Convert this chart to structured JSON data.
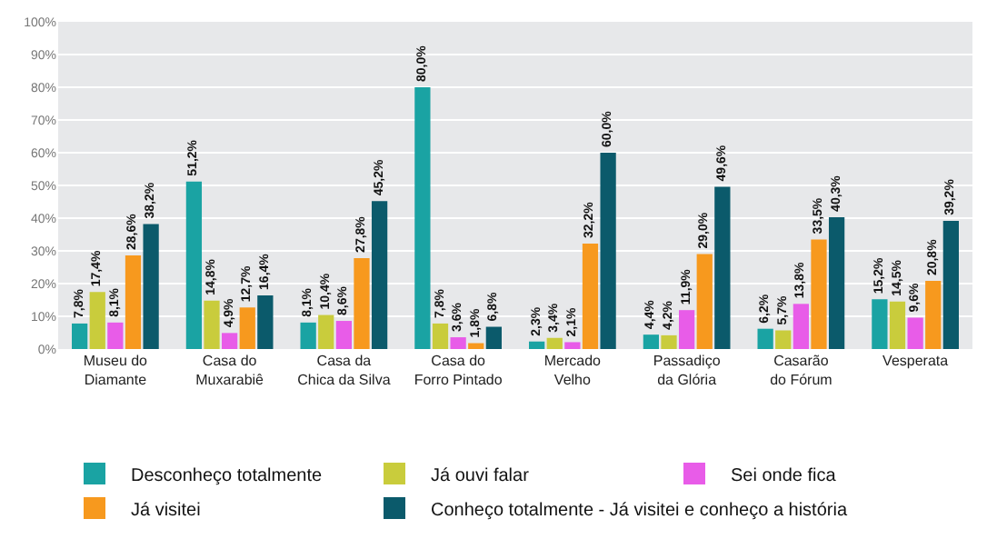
{
  "chart_data": {
    "type": "bar",
    "categories": [
      "Museu do Diamante",
      "Casa do Muxarabiê",
      "Casa da Chica da Silva",
      "Casa do Forro Pintado",
      "Mercado Velho",
      "Passadiço da Glória",
      "Casarão do Fórum",
      "Vesperata"
    ],
    "series": [
      {
        "name": "Desconheço totalmente",
        "color": "#1aa3a3",
        "values": [
          7.8,
          51.2,
          8.1,
          80.0,
          2.3,
          4.4,
          6.2,
          15.2
        ],
        "value_labels": [
          "7,8%",
          "51,2%",
          "8,1%",
          "80,0%",
          "2,3%",
          "4,4%",
          "6,2%",
          "15,2%"
        ]
      },
      {
        "name": "Já ouvi falar",
        "color": "#c9cc3c",
        "values": [
          17.4,
          14.8,
          10.4,
          7.8,
          3.4,
          4.2,
          5.7,
          14.5
        ],
        "value_labels": [
          "17,4%",
          "14,8%",
          "10,4%",
          "7,8%",
          "3,4%",
          "4,2%",
          "5,7%",
          "14,5%"
        ]
      },
      {
        "name": "Sei onde fica",
        "color": "#e85ce8",
        "values": [
          8.1,
          4.9,
          8.6,
          3.6,
          2.1,
          11.9,
          13.8,
          9.6
        ],
        "value_labels": [
          "8,1%",
          "4,9%",
          "8,6%",
          "3,6%",
          "2,1%",
          "11,9%",
          "13,8%",
          "9,6%"
        ]
      },
      {
        "name": "Já visitei",
        "color": "#f7991e",
        "values": [
          28.6,
          12.7,
          27.8,
          1.8,
          32.2,
          29.0,
          33.5,
          20.8
        ],
        "value_labels": [
          "28,6%",
          "12,7%",
          "27,8%",
          "1,8%",
          "32,2%",
          "29,0%",
          "33,5%",
          "20,8%"
        ]
      },
      {
        "name": "Conheço totalmente - Já visitei e conheço a história",
        "color": "#0b5a6b",
        "values": [
          38.2,
          16.4,
          45.2,
          6.8,
          60.0,
          49.6,
          40.3,
          39.2
        ],
        "value_labels": [
          "38,2%",
          "16,4%",
          "45,2%",
          "6,8%",
          "60,0%",
          "49,6%",
          "40,3%",
          "39,2%"
        ]
      }
    ],
    "ylim": [
      0,
      100
    ],
    "yticks": [
      {
        "value": 0,
        "label": "0%"
      },
      {
        "value": 10,
        "label": "10%"
      },
      {
        "value": 20,
        "label": "20%"
      },
      {
        "value": 30,
        "label": "30%"
      },
      {
        "value": 40,
        "label": "40%"
      },
      {
        "value": 50,
        "label": "50%"
      },
      {
        "value": 60,
        "label": "60%"
      },
      {
        "value": 70,
        "label": "70%"
      },
      {
        "value": 80,
        "label": "80%"
      },
      {
        "value": 90,
        "label": "90%"
      },
      {
        "value": 100,
        "label": "100%"
      }
    ],
    "grid": "y",
    "legend": "bottom"
  }
}
